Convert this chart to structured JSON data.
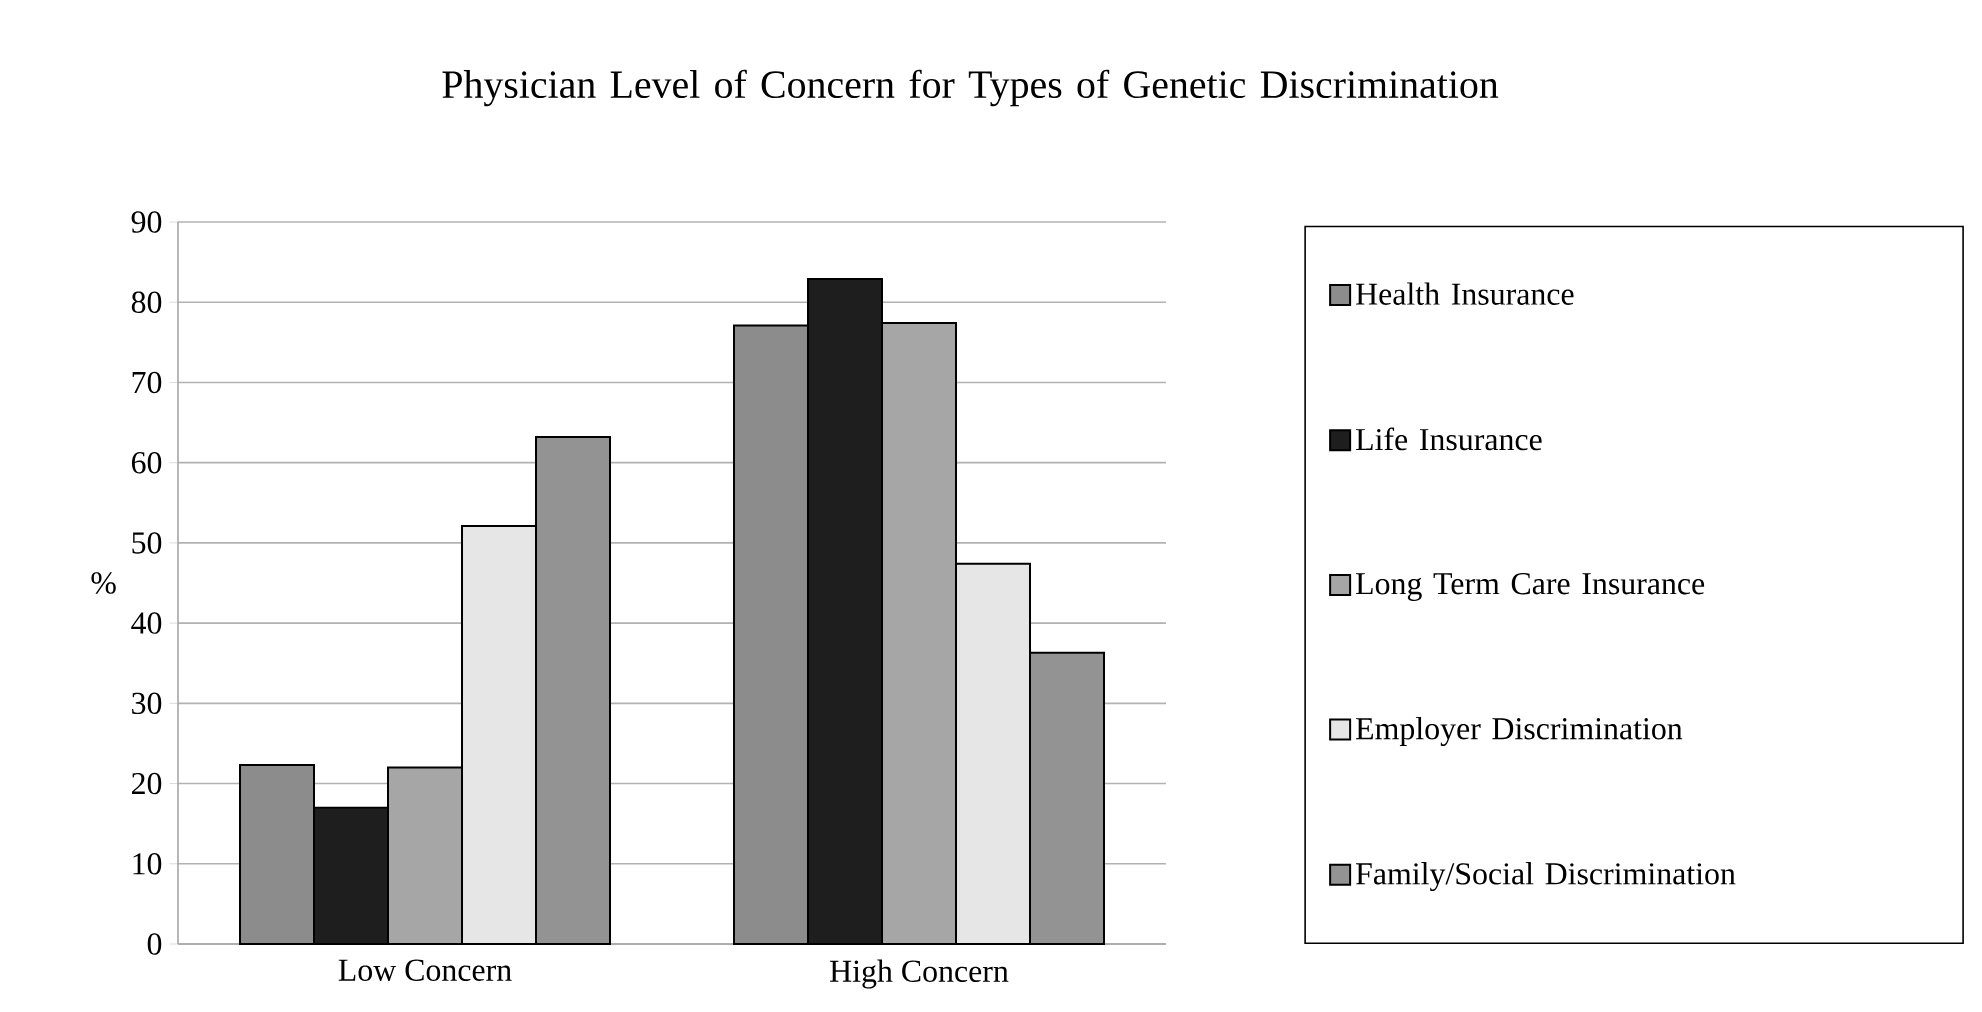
{
  "chart_data": {
    "type": "bar",
    "title": "Physician Level of Concern for Types of Genetic Discrimination",
    "ylabel": "%",
    "categories": [
      "Low Concern",
      "High Concern"
    ],
    "series": [
      {
        "name": "Health Insurance",
        "color": "#8c8c8c",
        "values": [
          22.3,
          77.1
        ]
      },
      {
        "name": "Life Insurance",
        "color": "#1e1e1e",
        "values": [
          17.0,
          82.9
        ]
      },
      {
        "name": "Long Term Care Insurance",
        "color": "#a6a6a6",
        "values": [
          22.0,
          77.4
        ]
      },
      {
        "name": "Employer Discrimination",
        "color": "#e6e6e6",
        "values": [
          52.1,
          47.4
        ]
      },
      {
        "name": "Family/Social Discrimination",
        "color": "#939393",
        "values": [
          63.2,
          36.3
        ]
      }
    ],
    "ylim": [
      0,
      90
    ],
    "yticks": [
      0,
      10,
      20,
      30,
      40,
      50,
      60,
      70,
      80,
      90
    ],
    "grid": "y",
    "legend": "right"
  }
}
